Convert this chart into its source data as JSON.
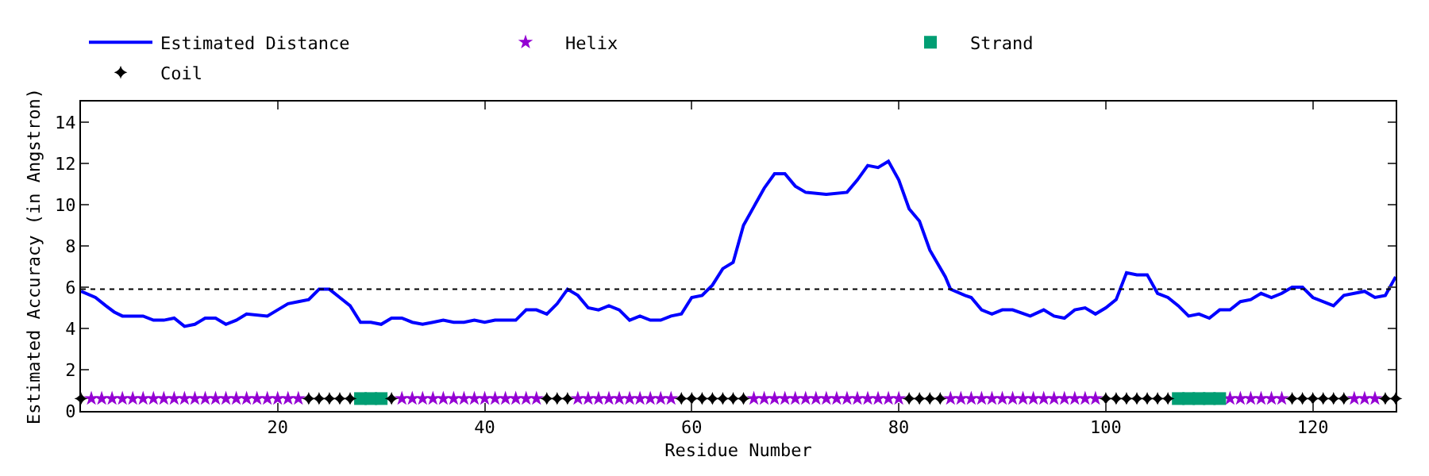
{
  "chart_data": {
    "type": "line",
    "xlabel": "Residue Number",
    "ylabel": "Estimated Accuracy (in Angstron)",
    "xlim": [
      1,
      128
    ],
    "xticks": [
      20,
      40,
      60,
      80,
      100,
      120
    ],
    "ylim": [
      0,
      15
    ],
    "yticks": [
      0,
      2,
      4,
      6,
      8,
      10,
      12,
      14
    ],
    "grid": false,
    "legend": "top",
    "ref_lines": [
      {
        "axis": "y",
        "value": 5.9,
        "color": "#000000",
        "line_style": "dotted"
      }
    ],
    "series": [
      {
        "name": "Estimated Distance",
        "color": "#0000ff",
        "marker": "none",
        "line_style": "solid",
        "x": [
          1,
          2.4,
          3.4,
          4.2,
          5,
          7,
          8,
          9,
          10,
          11,
          12,
          13,
          14,
          15,
          16,
          17,
          19,
          20,
          21,
          22,
          23,
          24,
          25,
          26,
          27,
          28,
          29,
          30,
          31,
          32,
          33,
          34,
          35,
          36,
          37,
          38,
          39,
          40,
          41,
          43,
          44,
          45,
          46,
          47,
          48,
          49,
          50,
          51,
          52,
          53,
          54,
          55,
          56,
          57,
          58,
          59,
          60,
          61,
          62,
          63,
          64,
          65,
          66,
          67,
          68,
          69,
          70,
          71,
          73,
          75,
          76,
          77,
          78,
          79,
          80,
          81,
          82,
          83,
          84.5,
          85,
          86.4,
          87,
          88,
          89,
          90,
          91,
          92.7,
          94,
          95,
          96,
          97,
          98,
          99,
          100,
          101,
          102,
          103,
          104,
          105,
          106,
          107,
          108,
          109,
          110,
          111,
          112,
          113,
          114,
          115,
          116,
          117,
          118,
          119,
          120,
          122,
          123,
          125,
          126,
          127,
          128
        ],
        "values": [
          5.8,
          5.5,
          5.1,
          4.8,
          4.6,
          4.6,
          4.4,
          4.4,
          4.5,
          4.1,
          4.2,
          4.5,
          4.5,
          4.2,
          4.4,
          4.7,
          4.6,
          4.9,
          5.2,
          5.3,
          5.4,
          5.9,
          5.9,
          5.5,
          5.1,
          4.3,
          4.3,
          4.2,
          4.5,
          4.5,
          4.3,
          4.2,
          4.3,
          4.4,
          4.3,
          4.3,
          4.4,
          4.3,
          4.4,
          4.4,
          4.9,
          4.9,
          4.7,
          5.2,
          5.9,
          5.6,
          5.0,
          4.9,
          5.1,
          4.9,
          4.4,
          4.6,
          4.4,
          4.4,
          4.6,
          4.7,
          5.5,
          5.6,
          6.1,
          6.9,
          7.2,
          9.0,
          9.9,
          10.8,
          11.5,
          11.5,
          10.9,
          10.6,
          10.5,
          10.6,
          11.2,
          11.9,
          11.8,
          12.1,
          11.2,
          9.8,
          9.2,
          7.8,
          6.5,
          5.9,
          5.6,
          5.5,
          4.9,
          4.7,
          4.9,
          4.9,
          4.6,
          4.9,
          4.6,
          4.5,
          4.9,
          5.0,
          4.7,
          5.0,
          5.4,
          6.7,
          6.6,
          6.6,
          5.7,
          5.5,
          5.1,
          4.6,
          4.7,
          4.5,
          4.9,
          4.9,
          5.3,
          5.4,
          5.7,
          5.5,
          5.7,
          6.0,
          6.0,
          5.5,
          5.1,
          5.6,
          5.8,
          5.5,
          5.6,
          6.5
        ]
      },
      {
        "name": "Helix",
        "type": "scatter",
        "color": "#9400d3",
        "marker": "star",
        "x": [
          2,
          3,
          4,
          5,
          6,
          7,
          8,
          9,
          10,
          11,
          12,
          13,
          14,
          15,
          16,
          17,
          18,
          19,
          20,
          21,
          22,
          32,
          33,
          34,
          35,
          36,
          37,
          38,
          39,
          40,
          41,
          42,
          43,
          44,
          45,
          49,
          50,
          51,
          52,
          53,
          54,
          55,
          56,
          57,
          58,
          66,
          67,
          68,
          69,
          70,
          71,
          72,
          73,
          74,
          75,
          76,
          77,
          78,
          79,
          80,
          85,
          86,
          87,
          88,
          89,
          90,
          91,
          92,
          93,
          94,
          95,
          96,
          97,
          98,
          99,
          112,
          113,
          114,
          115,
          116,
          117,
          124,
          125,
          126
        ],
        "values": [
          0.6,
          0.6,
          0.6,
          0.6,
          0.6,
          0.6,
          0.6,
          0.6,
          0.6,
          0.6,
          0.6,
          0.6,
          0.6,
          0.6,
          0.6,
          0.6,
          0.6,
          0.6,
          0.6,
          0.6,
          0.6,
          0.6,
          0.6,
          0.6,
          0.6,
          0.6,
          0.6,
          0.6,
          0.6,
          0.6,
          0.6,
          0.6,
          0.6,
          0.6,
          0.6,
          0.6,
          0.6,
          0.6,
          0.6,
          0.6,
          0.6,
          0.6,
          0.6,
          0.6,
          0.6,
          0.6,
          0.6,
          0.6,
          0.6,
          0.6,
          0.6,
          0.6,
          0.6,
          0.6,
          0.6,
          0.6,
          0.6,
          0.6,
          0.6,
          0.6,
          0.6,
          0.6,
          0.6,
          0.6,
          0.6,
          0.6,
          0.6,
          0.6,
          0.6,
          0.6,
          0.6,
          0.6,
          0.6,
          0.6,
          0.6,
          0.6,
          0.6,
          0.6,
          0.6,
          0.6,
          0.6,
          0.6,
          0.6,
          0.6
        ]
      },
      {
        "name": "Strand",
        "type": "scatter",
        "color": "#009e73",
        "marker": "square",
        "x": [
          28,
          29,
          30,
          107,
          108,
          109,
          110,
          111
        ],
        "values": [
          0.6,
          0.6,
          0.6,
          0.6,
          0.6,
          0.6,
          0.6,
          0.6
        ]
      },
      {
        "name": "Coil",
        "type": "scatter",
        "color": "#000000",
        "marker": "diamond",
        "x": [
          1,
          23,
          24,
          25,
          26,
          27,
          31,
          46,
          47,
          48,
          59,
          60,
          61,
          62,
          63,
          64,
          65,
          81,
          82,
          83,
          84,
          100,
          101,
          102,
          103,
          104,
          105,
          106,
          118,
          119,
          120,
          121,
          122,
          123,
          127,
          128
        ],
        "values": [
          0.6,
          0.6,
          0.6,
          0.6,
          0.6,
          0.6,
          0.6,
          0.6,
          0.6,
          0.6,
          0.6,
          0.6,
          0.6,
          0.6,
          0.6,
          0.6,
          0.6,
          0.6,
          0.6,
          0.6,
          0.6,
          0.6,
          0.6,
          0.6,
          0.6,
          0.6,
          0.6,
          0.6,
          0.6,
          0.6,
          0.6,
          0.6,
          0.6,
          0.6,
          0.6,
          0.6
        ]
      }
    ]
  }
}
